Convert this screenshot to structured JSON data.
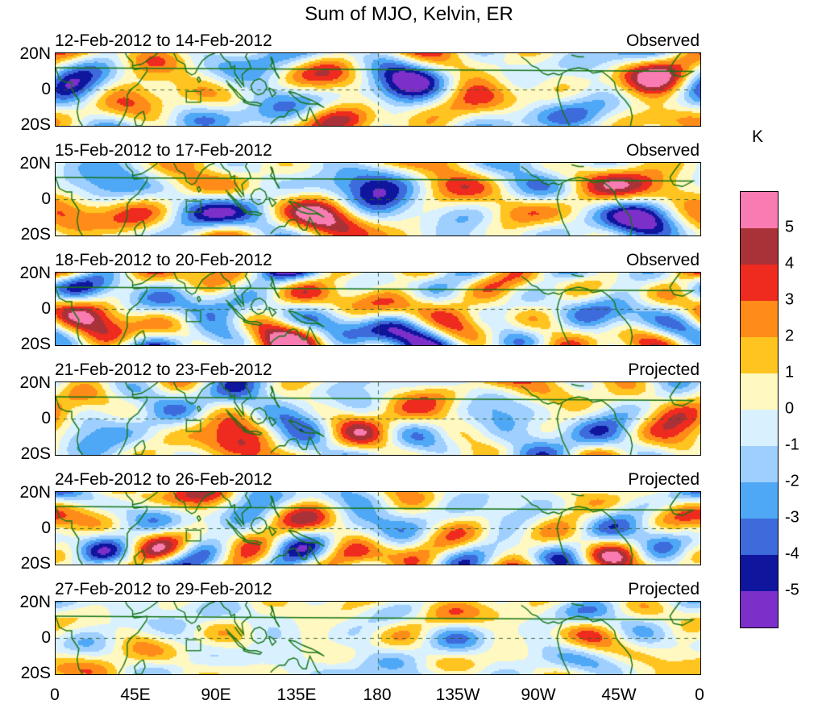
{
  "title": "Sum of MJO, Kelvin, ER",
  "panels": [
    {
      "date_range": "12-Feb-2012 to 14-Feb-2012",
      "status": "Observed"
    },
    {
      "date_range": "15-Feb-2012 to 17-Feb-2012",
      "status": "Observed"
    },
    {
      "date_range": "18-Feb-2012 to 20-Feb-2012",
      "status": "Observed"
    },
    {
      "date_range": "21-Feb-2012 to 23-Feb-2012",
      "status": "Projected"
    },
    {
      "date_range": "24-Feb-2012 to 26-Feb-2012",
      "status": "Projected"
    },
    {
      "date_range": "27-Feb-2012 to 29-Feb-2012",
      "status": "Projected"
    }
  ],
  "y_axis": {
    "ticks": [
      "20N",
      "0",
      "20S"
    ]
  },
  "x_axis": {
    "ticks": [
      "0",
      "45E",
      "90E",
      "135E",
      "180",
      "135W",
      "90W",
      "45W",
      "0"
    ]
  },
  "colorbar": {
    "unit": "K",
    "tick_labels": [
      "5",
      "4",
      "3",
      "2",
      "1",
      "0",
      "-1",
      "-2",
      "-3",
      "-4",
      "-5"
    ],
    "colors_high_to_low": [
      "#F87BB1",
      "#A93238",
      "#EE2B1E",
      "#FF8C19",
      "#FFC41F",
      "#FFF8C0",
      "#D9F1FF",
      "#9FCFFF",
      "#4FA8F5",
      "#3D6BDC",
      "#10159E",
      "#7C30C9"
    ],
    "coastline_color": "#157515"
  },
  "chart_data": {
    "type": "heatmap",
    "title": "Sum of MJO, Kelvin, ER",
    "description": "Six filled-contour longitude-latitude maps (20S-20N, 0-360 longitude) of summed MJO, Kelvin and ER wave temperature anomalies in Kelvin; three observed and three projected 3-day periods in February 2012; dark-green coastlines, dashed equator and dateline reference lines, green index box near 75E on the equator.",
    "panels": [
      {
        "date_range": "12-Feb-2012 to 14-Feb-2012",
        "status": "Observed"
      },
      {
        "date_range": "15-Feb-2012 to 17-Feb-2012",
        "status": "Observed"
      },
      {
        "date_range": "18-Feb-2012 to 20-Feb-2012",
        "status": "Observed"
      },
      {
        "date_range": "21-Feb-2012 to 23-Feb-2012",
        "status": "Projected"
      },
      {
        "date_range": "24-Feb-2012 to 26-Feb-2012",
        "status": "Projected"
      },
      {
        "date_range": "27-Feb-2012 to 29-Feb-2012",
        "status": "Projected"
      }
    ],
    "x_tick_labels": [
      "0",
      "45E",
      "90E",
      "135E",
      "180",
      "135W",
      "90W",
      "45W",
      "0"
    ],
    "y_tick_labels": [
      "20N",
      "0",
      "20S"
    ],
    "lon_range": [
      0,
      360
    ],
    "lat_range": [
      -20,
      20
    ],
    "contour_levels": [
      -5,
      -4,
      -3,
      -2,
      -1,
      0,
      1,
      2,
      3,
      4,
      5
    ],
    "units": "K",
    "legend_position": "right",
    "grid": "dashed reference lines at equator and 180 longitude"
  }
}
